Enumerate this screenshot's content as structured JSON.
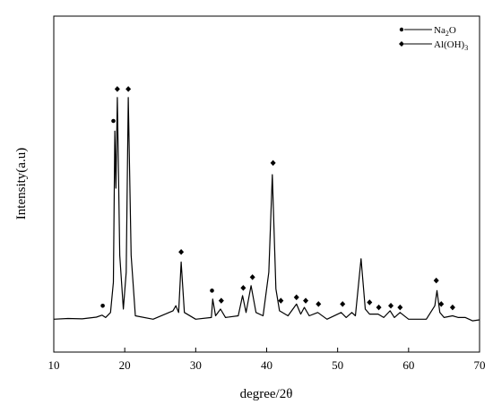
{
  "chart_data": {
    "type": "line",
    "title": "",
    "xlabel": "degree/2θ",
    "ylabel": "Intensity(a.u)",
    "xlim": [
      10,
      70
    ],
    "x_ticks": [
      "10",
      "20",
      "30",
      "40",
      "50",
      "60",
      "70"
    ],
    "y_ticks_labeled": false,
    "grid": false,
    "legend_position": "top-right",
    "line_color": "#000000",
    "series": [
      {
        "points": [
          [
            10,
            1.0
          ],
          [
            12,
            1.2
          ],
          [
            14,
            1.1
          ],
          [
            16,
            1.6
          ],
          [
            16.8,
            2.2
          ],
          [
            17.3,
            1.5
          ],
          [
            18.0,
            3.0
          ],
          [
            18.4,
            12.0
          ],
          [
            18.6,
            57.0
          ],
          [
            18.75,
            40.0
          ],
          [
            18.95,
            67.0
          ],
          [
            19.3,
            20.0
          ],
          [
            19.8,
            4.0
          ],
          [
            20.2,
            15.0
          ],
          [
            20.5,
            67.0
          ],
          [
            20.9,
            20.0
          ],
          [
            21.5,
            2.0
          ],
          [
            24,
            1.0
          ],
          [
            26.8,
            3.5
          ],
          [
            27.2,
            5.0
          ],
          [
            27.6,
            3.0
          ],
          [
            27.95,
            18.0
          ],
          [
            28.4,
            3.0
          ],
          [
            30,
            1.0
          ],
          [
            32.2,
            1.5
          ],
          [
            32.4,
            7.0
          ],
          [
            32.8,
            2.0
          ],
          [
            33.5,
            4.0
          ],
          [
            34.2,
            1.5
          ],
          [
            36,
            2.0
          ],
          [
            36.6,
            8.0
          ],
          [
            37.1,
            3.0
          ],
          [
            37.8,
            11.0
          ],
          [
            38.5,
            3.0
          ],
          [
            39.5,
            2.0
          ],
          [
            40.3,
            15.0
          ],
          [
            40.8,
            44.0
          ],
          [
            41.3,
            10.0
          ],
          [
            41.8,
            3.5
          ],
          [
            43.0,
            2.0
          ],
          [
            44.2,
            5.5
          ],
          [
            44.8,
            2.5
          ],
          [
            45.3,
            4.5
          ],
          [
            46.0,
            2.0
          ],
          [
            47.2,
            3.0
          ],
          [
            48.5,
            1.0
          ],
          [
            50.5,
            3.0
          ],
          [
            51.2,
            1.5
          ],
          [
            52.0,
            3.0
          ],
          [
            52.5,
            2.0
          ],
          [
            53.3,
            19.0
          ],
          [
            53.9,
            4.0
          ],
          [
            54.5,
            2.5
          ],
          [
            55.7,
            2.5
          ],
          [
            56.5,
            1.5
          ],
          [
            57.4,
            3.5
          ],
          [
            58.0,
            1.5
          ],
          [
            58.8,
            3.0
          ],
          [
            60.0,
            1.0
          ],
          [
            62.5,
            1.0
          ],
          [
            63.7,
            5.0
          ],
          [
            64.0,
            9.5
          ],
          [
            64.4,
            3.0
          ],
          [
            65.0,
            1.5
          ],
          [
            66.2,
            2.0
          ],
          [
            67.0,
            1.5
          ],
          [
            68.0,
            1.5
          ],
          [
            69.0,
            0.5
          ],
          [
            70,
            0.8
          ]
        ]
      }
    ],
    "markers": {
      "na2o": [
        [
          16.9,
          5.0
        ],
        [
          18.4,
          60.0
        ],
        [
          32.3,
          9.5
        ]
      ],
      "aloh3": [
        [
          18.95,
          69.5
        ],
        [
          20.5,
          69.5
        ],
        [
          27.95,
          21.0
        ],
        [
          33.6,
          6.5
        ],
        [
          36.7,
          10.3
        ],
        [
          38.0,
          13.5
        ],
        [
          40.9,
          47.5
        ],
        [
          42.0,
          6.5
        ],
        [
          44.2,
          7.5
        ],
        [
          45.5,
          6.5
        ],
        [
          47.3,
          5.5
        ],
        [
          50.7,
          5.5
        ],
        [
          54.5,
          6.0
        ],
        [
          55.8,
          4.5
        ],
        [
          57.5,
          5.0
        ],
        [
          58.8,
          4.5
        ],
        [
          63.9,
          12.5
        ],
        [
          64.6,
          5.5
        ],
        [
          66.2,
          4.5
        ]
      ]
    },
    "legend": [
      {
        "label_main": "Na",
        "label_sub": "2",
        "label_tail": "O",
        "marker": "dot"
      },
      {
        "label_main": "Al(OH)",
        "label_sub": "3",
        "label_tail": "",
        "marker": "diamond"
      }
    ]
  }
}
